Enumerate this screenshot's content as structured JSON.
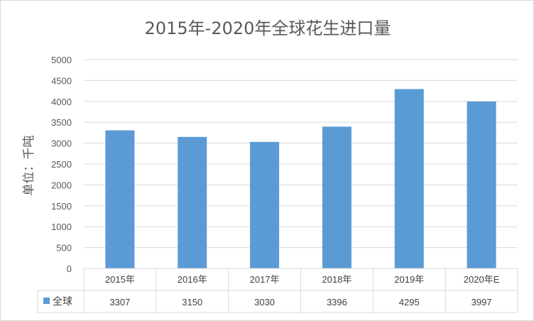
{
  "chart_data": {
    "type": "bar",
    "title": "2015年-2020年全球花生进口量",
    "ylabel": "单位：千吨",
    "xlabel": "",
    "categories": [
      "2015年",
      "2016年",
      "2017年",
      "2018年",
      "2019年",
      "2020年E"
    ],
    "series": [
      {
        "name": "全球",
        "values": [
          3307,
          3150,
          3030,
          3396,
          4295,
          3997
        ],
        "color": "#5b9bd5"
      }
    ],
    "ylim": [
      0,
      5000
    ],
    "yticks": [
      0,
      500,
      1000,
      1500,
      2000,
      2500,
      3000,
      3500,
      4000,
      4500,
      5000
    ],
    "grid": true,
    "data_table": true,
    "legend": "data-table-left"
  }
}
